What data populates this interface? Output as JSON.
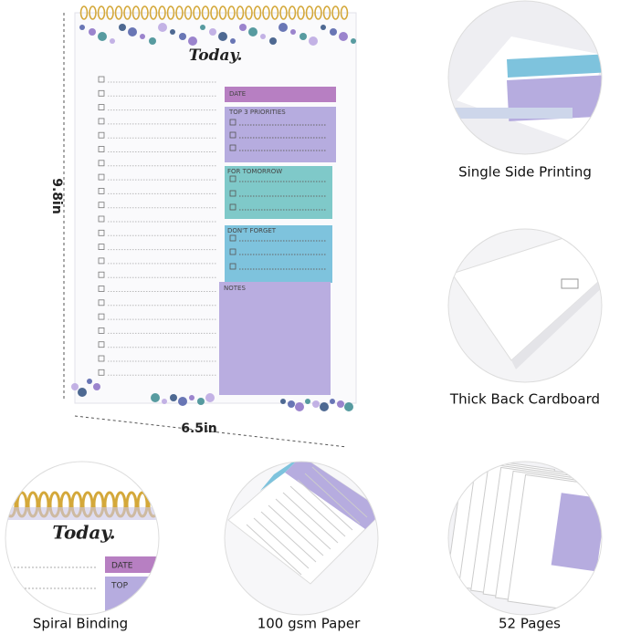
{
  "notepad": {
    "title": "Today.",
    "sections": [
      "DATE",
      "TOP 3 PRIORITIES",
      "FOR TOMORROW",
      "DON'T FORGET",
      "NOTES"
    ]
  },
  "dimensions": {
    "height": "9.8in",
    "width": "6.5in"
  },
  "features": [
    {
      "label": "Single Side Printing"
    },
    {
      "label": "Thick Back Cardboard"
    },
    {
      "label": "Spiral Binding"
    },
    {
      "label": "100 gsm Paper"
    },
    {
      "label": "52 Pages"
    }
  ],
  "spiral_detail": {
    "title": "Today.",
    "labels": [
      "DATE",
      "TOP"
    ]
  }
}
